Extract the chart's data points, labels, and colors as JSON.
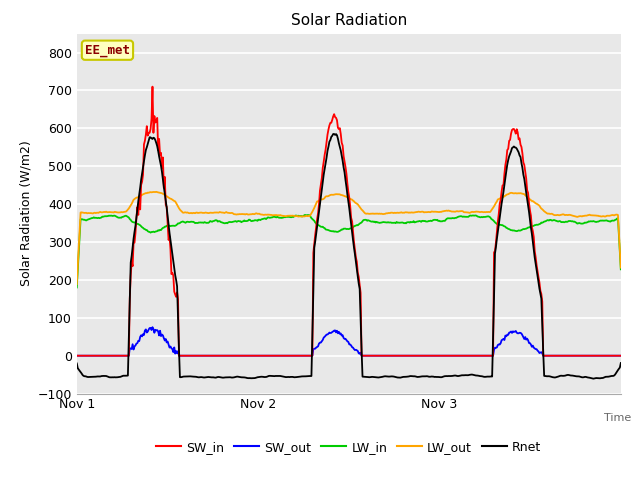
{
  "title": "Solar Radiation",
  "ylabel": "Solar Radiation (W/m2)",
  "xlabel": "Time",
  "ylim": [
    -100,
    850
  ],
  "yticks": [
    -100,
    0,
    100,
    200,
    300,
    400,
    500,
    600,
    700,
    800
  ],
  "xtick_labels": [
    "Nov 1",
    "Nov 2",
    "Nov 3"
  ],
  "annotation_text": "EE_met",
  "annotation_box_color": "#ffffc0",
  "annotation_text_color": "#8b0000",
  "annotation_edge_color": "#c8c800",
  "legend_labels": [
    "SW_in",
    "SW_out",
    "LW_in",
    "LW_out",
    "Rnet"
  ],
  "line_colors": {
    "SW_in": "#ff0000",
    "SW_out": "#0000ff",
    "LW_in": "#00cc00",
    "LW_out": "#ffa500",
    "Rnet": "#000000"
  },
  "background_color": "#e8e8e8",
  "grid_color": "#ffffff",
  "n_points": 576
}
